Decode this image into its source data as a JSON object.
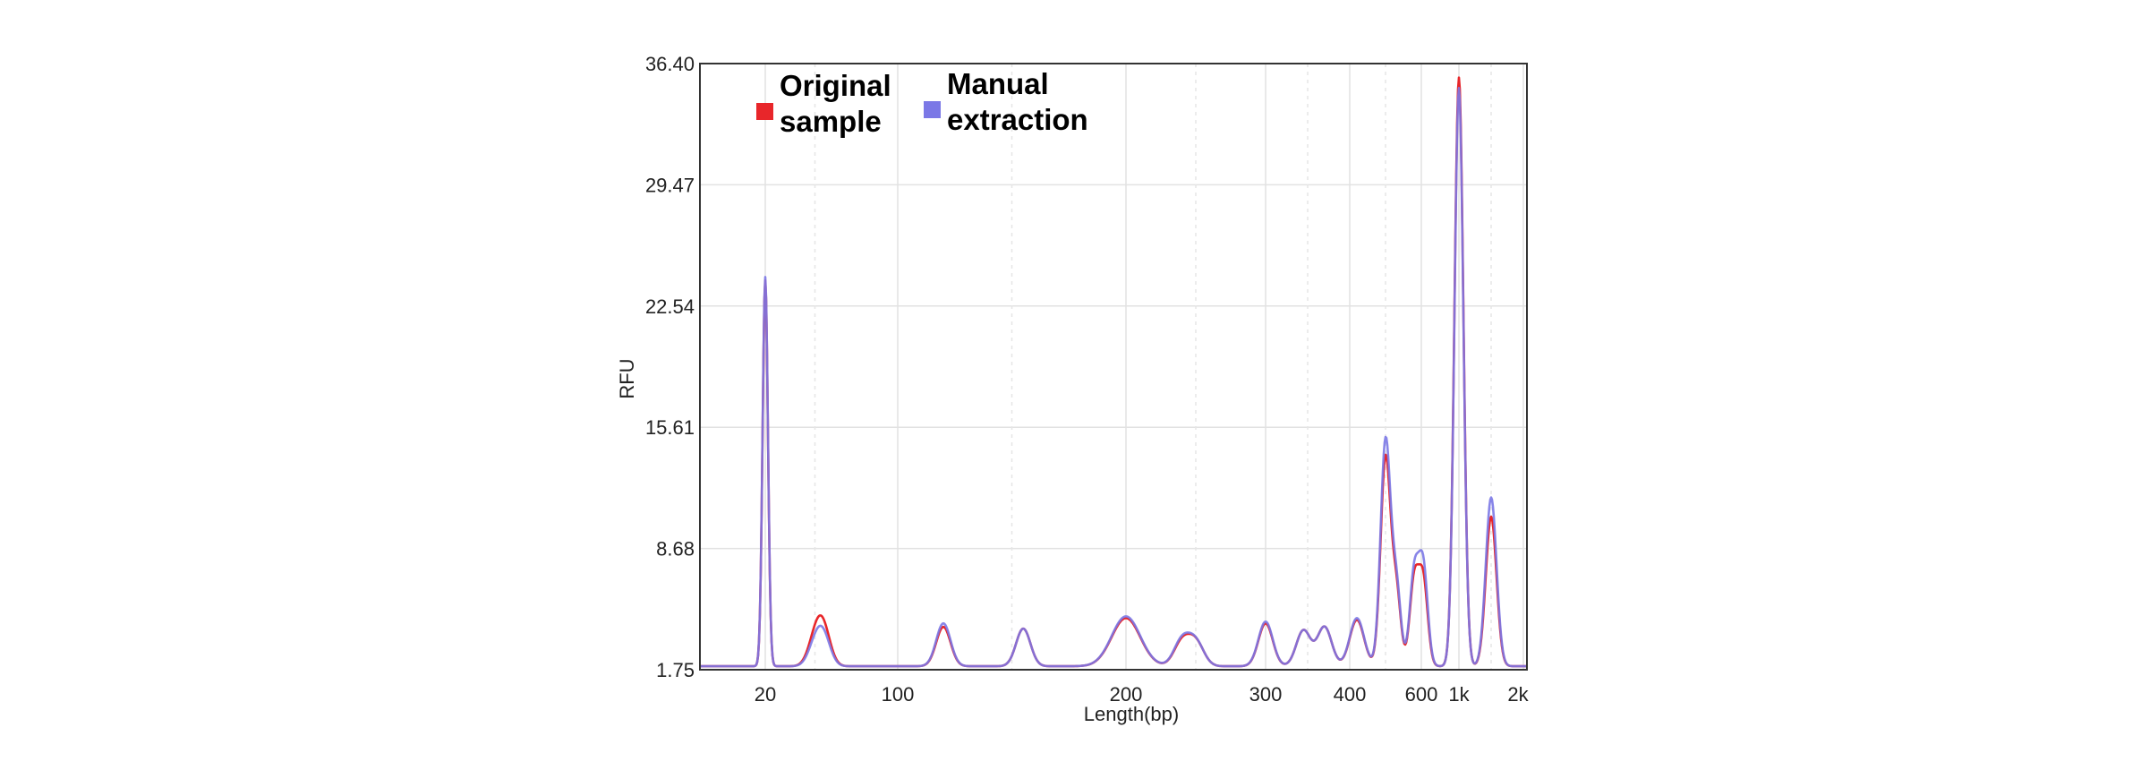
{
  "chart_data": {
    "type": "line",
    "xlabel": "Length(bp)",
    "ylabel": "RFU",
    "x_scale": "piecewise (electropherogram ladder axis)",
    "x_ticks": [
      {
        "label": "20",
        "value": 20
      },
      {
        "label": "100",
        "value": 100
      },
      {
        "label": "200",
        "value": 200
      },
      {
        "label": "300",
        "value": 300
      },
      {
        "label": "400",
        "value": 400
      },
      {
        "label": "600",
        "value": 600
      },
      {
        "label": "1k",
        "value": 1000
      },
      {
        "label": "2k",
        "value": 2000
      }
    ],
    "y_ticks": [
      "36.40",
      "29.47",
      "22.54",
      "15.61",
      "8.68",
      "1.75"
    ],
    "ylim": [
      1.75,
      36.4
    ],
    "grid": "on",
    "legend_position": "top-left",
    "series": [
      {
        "name": "Original sample",
        "color": "#e8262a",
        "peaks": [
          {
            "x": 20,
            "y": 24.0
          },
          {
            "x": 50,
            "y": 3.3
          },
          {
            "x": 55,
            "y": 4.0
          },
          {
            "x": 120,
            "y": 4.2
          },
          {
            "x": 155,
            "y": 4.1
          },
          {
            "x": 200,
            "y": 4.7
          },
          {
            "x": 240,
            "y": 3.3
          },
          {
            "x": 250,
            "y": 3.3
          },
          {
            "x": 300,
            "y": 4.4
          },
          {
            "x": 345,
            "y": 4.0
          },
          {
            "x": 370,
            "y": 4.2
          },
          {
            "x": 420,
            "y": 4.6
          },
          {
            "x": 500,
            "y": 13.8
          },
          {
            "x": 530,
            "y": 6.2
          },
          {
            "x": 580,
            "y": 6.8
          },
          {
            "x": 620,
            "y": 6.8
          },
          {
            "x": 1000,
            "y": 35.6
          },
          {
            "x": 1500,
            "y": 10.5
          }
        ]
      },
      {
        "name": "Manual extraction",
        "color": "#7b78e6",
        "peaks": [
          {
            "x": 20,
            "y": 24.2
          },
          {
            "x": 50,
            "y": 3.0
          },
          {
            "x": 55,
            "y": 3.6
          },
          {
            "x": 120,
            "y": 4.4
          },
          {
            "x": 155,
            "y": 4.1
          },
          {
            "x": 200,
            "y": 4.8
          },
          {
            "x": 240,
            "y": 3.4
          },
          {
            "x": 250,
            "y": 3.3
          },
          {
            "x": 300,
            "y": 4.5
          },
          {
            "x": 345,
            "y": 4.0
          },
          {
            "x": 370,
            "y": 4.2
          },
          {
            "x": 420,
            "y": 4.7
          },
          {
            "x": 500,
            "y": 14.8
          },
          {
            "x": 530,
            "y": 6.5
          },
          {
            "x": 580,
            "y": 7.2
          },
          {
            "x": 620,
            "y": 7.6
          },
          {
            "x": 1000,
            "y": 35.0
          },
          {
            "x": 1500,
            "y": 11.6
          }
        ]
      }
    ]
  }
}
